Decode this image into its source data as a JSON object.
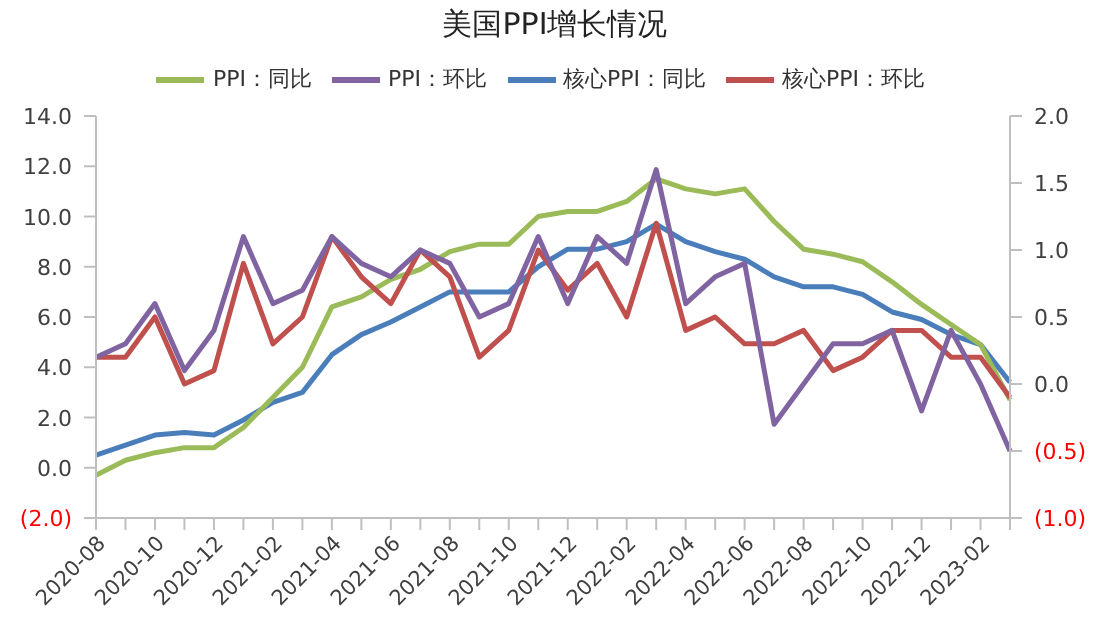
{
  "chart_data": {
    "type": "line",
    "title": "美国PPI增长情况",
    "legend": "top",
    "categories": [
      "2020-08",
      null,
      "2020-10",
      null,
      "2020-12",
      null,
      "2021-02",
      null,
      "2021-04",
      null,
      "2021-06",
      null,
      "2021-08",
      null,
      "2021-10",
      null,
      "2021-12",
      null,
      "2022-02",
      null,
      "2022-04",
      null,
      "2022-06",
      null,
      "2022-08",
      null,
      "2022-10",
      null,
      "2022-12",
      null,
      "2023-02",
      null
    ],
    "series": [
      {
        "name": "核心PPI：同比",
        "color": "#4a7ebb",
        "values": [
          0.5,
          0.9,
          1.3,
          1.4,
          1.3,
          1.9,
          2.6,
          3.0,
          4.5,
          5.3,
          5.8,
          6.4,
          7.0,
          7.0,
          7.0,
          8.0,
          8.7,
          8.7,
          9.0,
          9.7,
          9.0,
          8.6,
          8.3,
          7.6,
          7.2,
          7.2,
          6.9,
          6.2,
          5.9,
          5.3,
          4.9,
          3.4
        ]
      },
      {
        "name": "PPI：同比",
        "color": "#9bbb59",
        "values": [
          -0.3,
          0.3,
          0.6,
          0.8,
          0.8,
          1.6,
          2.8,
          4.0,
          6.4,
          6.8,
          7.5,
          7.9,
          8.6,
          8.9,
          8.9,
          10.0,
          10.2,
          10.2,
          10.6,
          11.5,
          11.1,
          10.9,
          11.1,
          9.8,
          8.7,
          8.5,
          8.2,
          7.4,
          6.5,
          5.7,
          4.9,
          2.7
        ]
      },
      {
        "name": "核心PPI：环比",
        "color": "#c0504d",
        "axis": "y2",
        "values": [
          0.2,
          0.2,
          0.5,
          0.0,
          0.1,
          0.9,
          0.3,
          0.5,
          1.1,
          0.8,
          0.6,
          1.0,
          0.8,
          0.2,
          0.4,
          1.0,
          0.7,
          0.9,
          0.5,
          1.2,
          0.4,
          0.5,
          0.3,
          0.3,
          0.4,
          0.1,
          0.2,
          0.4,
          0.4,
          0.2,
          0.2,
          -0.1
        ]
      },
      {
        "name": "PPI：环比",
        "color": "#8064a2",
        "axis": "y2",
        "values": [
          0.2,
          0.3,
          0.6,
          0.1,
          0.4,
          1.1,
          0.6,
          0.7,
          1.1,
          0.9,
          0.8,
          1.0,
          0.9,
          0.5,
          0.6,
          1.1,
          0.6,
          1.1,
          0.9,
          1.6,
          0.6,
          0.8,
          0.9,
          -0.3,
          0.0,
          0.3,
          0.3,
          0.4,
          -0.2,
          0.4,
          0.0,
          -0.5
        ]
      }
    ],
    "ylim": [
      -2,
      14
    ],
    "yticks": [
      {
        "value": -2,
        "label": "(2.0)"
      },
      {
        "value": 0,
        "label": "0.0"
      },
      {
        "value": 2,
        "label": "2.0"
      },
      {
        "value": 4,
        "label": "4.0"
      },
      {
        "value": 6,
        "label": "6.0"
      },
      {
        "value": 8,
        "label": "8.0"
      },
      {
        "value": 10,
        "label": "10.0"
      },
      {
        "value": 12,
        "label": "12.0"
      },
      {
        "value": 14,
        "label": "14.0"
      }
    ],
    "y2lim": [
      -1,
      2
    ],
    "y2ticks": [
      {
        "value": -1,
        "label": "(1.0)"
      },
      {
        "value": -0.5,
        "label": "(0.5)"
      },
      {
        "value": 0,
        "label": "0.0"
      },
      {
        "value": 0.5,
        "label": "0.5"
      },
      {
        "value": 1,
        "label": "1.0"
      },
      {
        "value": 1.5,
        "label": "1.5"
      },
      {
        "value": 2,
        "label": "2.0"
      }
    ]
  }
}
